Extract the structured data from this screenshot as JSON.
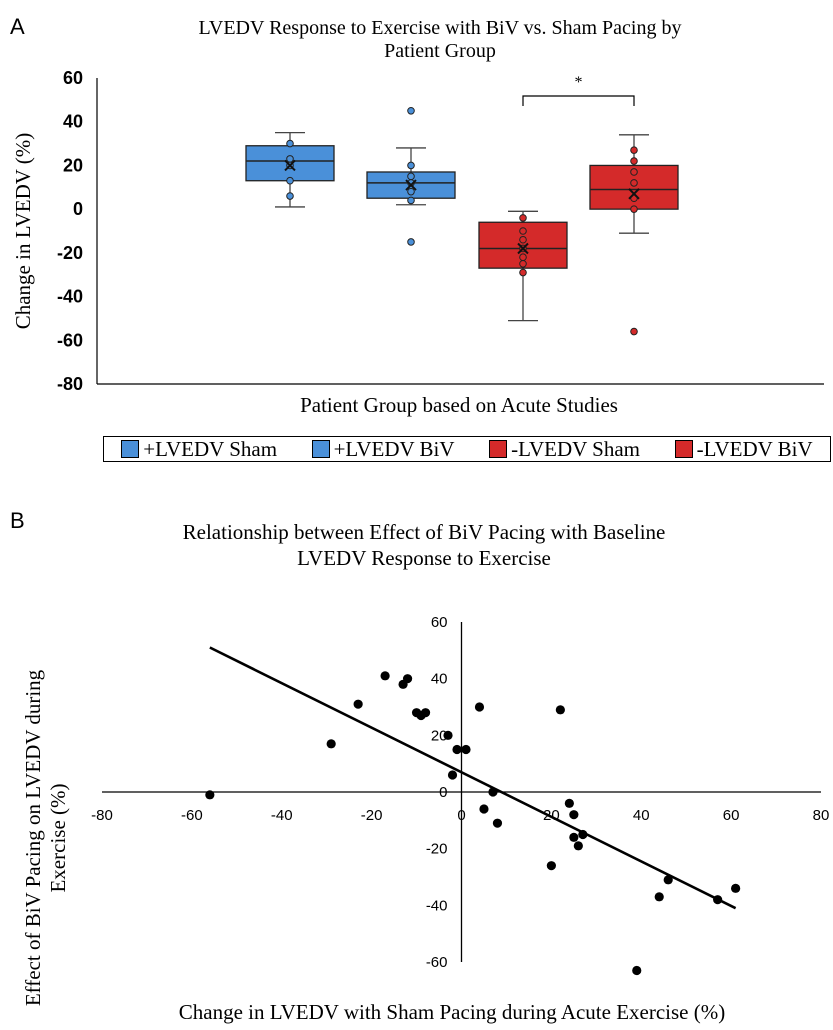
{
  "panelA": {
    "label": "A",
    "chart_data": {
      "type": "box",
      "title": "LVEDV Response to Exercise with BiV vs. Sham Pacing by Patient Group",
      "title_lines": [
        "LVEDV Response to Exercise with BiV vs. Sham Pacing by",
        "Patient Group"
      ],
      "xlabel": "Patient Group based on Acute Studies",
      "ylabel": "Change in LVEDV (%)",
      "ylim": [
        -80,
        60
      ],
      "yticks": [
        "60",
        "40",
        "20",
        "0",
        "-20",
        "-40",
        "-60",
        "-80"
      ],
      "significance": {
        "between": [
          2,
          3
        ],
        "marker": "*"
      },
      "series": [
        {
          "name": "+LVEDV Sham",
          "color": "#4a90d9",
          "whisker_min": 1,
          "q1": 13,
          "median": 22,
          "q3": 29,
          "whisker_max": 35,
          "mean": 20,
          "points": [
            30,
            23,
            20,
            13,
            6
          ],
          "outliers": []
        },
        {
          "name": "+LVEDV BiV",
          "color": "#4a90d9",
          "whisker_min": 2,
          "q1": 5,
          "median": 12,
          "q3": 17,
          "whisker_max": 28,
          "mean": 11,
          "points": [
            20,
            15,
            12,
            8,
            4
          ],
          "outliers": [
            45,
            -15
          ]
        },
        {
          "name": "-LVEDV Sham",
          "color": "#d42a2a",
          "whisker_min": -51,
          "q1": -27,
          "median": -18,
          "q3": -6,
          "whisker_max": -1,
          "mean": -18,
          "points": [
            -4,
            -10,
            -14,
            -18,
            -22,
            -25,
            -29
          ],
          "outliers": []
        },
        {
          "name": "-LVEDV BiV",
          "color": "#d42a2a",
          "whisker_min": -11,
          "q1": 0,
          "median": 9,
          "q3": 20,
          "whisker_max": 34,
          "mean": 7,
          "points": [
            27,
            22,
            17,
            12,
            5,
            0
          ],
          "outliers": [
            -56
          ]
        }
      ]
    }
  },
  "panelB": {
    "label": "B",
    "chart_data": {
      "type": "scatter",
      "title": "Relationship between Effect of BiV Pacing with Baseline LVEDV Response to Exercise",
      "title_lines": [
        "Relationship between Effect of BiV Pacing with Baseline",
        "LVEDV Response to Exercise"
      ],
      "xlabel": "Change in LVEDV with Sham Pacing during Acute Exercise (%)",
      "ylabel_lines": [
        "Effect of BiV Pacing on LVEDV during",
        "Exercise (%)"
      ],
      "xlim": [
        -80,
        80
      ],
      "ylim": [
        -60,
        60
      ],
      "xticks": [
        "-80",
        "-60",
        "-40",
        "-20",
        "0",
        "20",
        "40",
        "60",
        "80"
      ],
      "yticks": [
        "60",
        "40",
        "20",
        "0",
        "-20",
        "-40",
        "-60"
      ],
      "points": [
        [
          -56,
          -1
        ],
        [
          -29,
          17
        ],
        [
          -23,
          31
        ],
        [
          -17,
          41
        ],
        [
          -13,
          38
        ],
        [
          -12,
          40
        ],
        [
          -10,
          28
        ],
        [
          -9,
          27
        ],
        [
          -8,
          28
        ],
        [
          -3,
          20
        ],
        [
          -2,
          6
        ],
        [
          -1,
          15
        ],
        [
          1,
          15
        ],
        [
          4,
          30
        ],
        [
          5,
          -6
        ],
        [
          7,
          0
        ],
        [
          8,
          -11
        ],
        [
          22,
          29
        ],
        [
          20,
          -26
        ],
        [
          24,
          -4
        ],
        [
          25,
          -8
        ],
        [
          25,
          -16
        ],
        [
          26,
          -19
        ],
        [
          27,
          -15
        ],
        [
          39,
          -63
        ],
        [
          44,
          -37
        ],
        [
          46,
          -31
        ],
        [
          57,
          -38
        ],
        [
          61,
          -34
        ]
      ],
      "trendline": {
        "x": [
          -56,
          61
        ],
        "y": [
          51,
          -41
        ]
      }
    }
  }
}
